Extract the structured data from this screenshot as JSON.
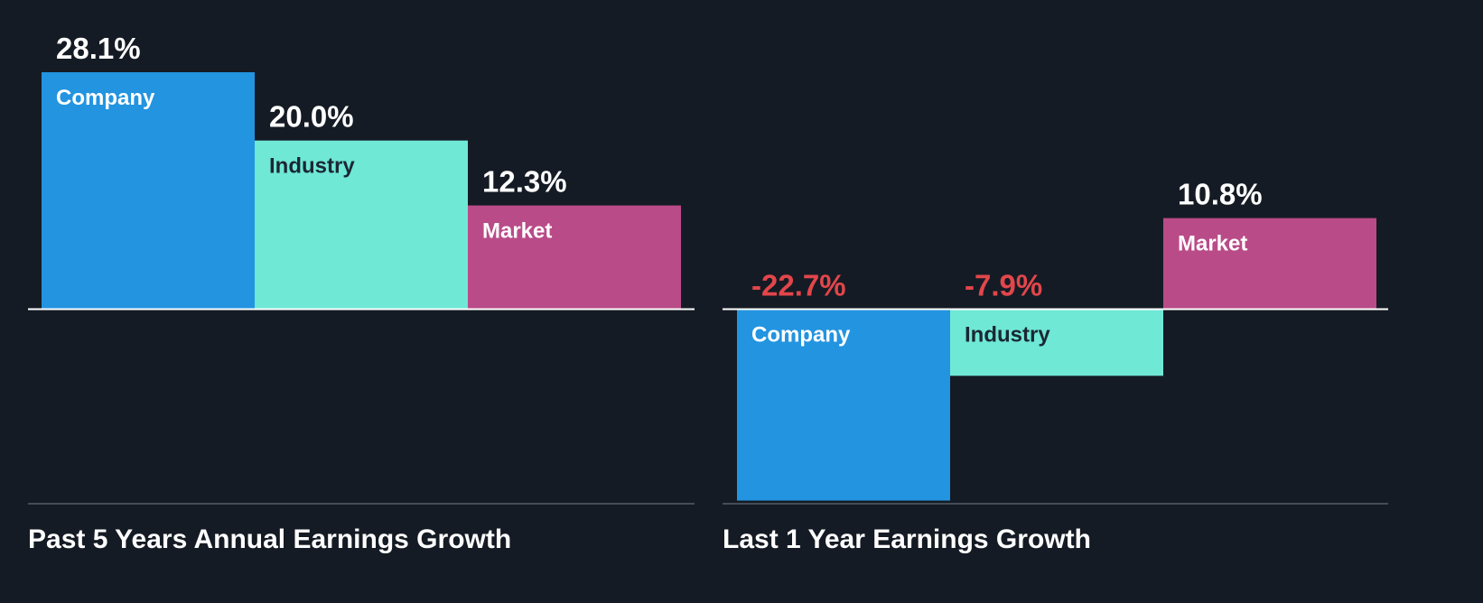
{
  "chart_data": [
    {
      "type": "bar",
      "title": "Past 5 Years Annual Earnings Growth",
      "categories": [
        "Company",
        "Industry",
        "Market"
      ],
      "values": [
        28.1,
        20.0,
        12.3
      ],
      "value_labels": [
        "28.1%",
        "20.0%",
        "12.3%"
      ],
      "unit": "%",
      "ylim": [
        -23.5,
        28.1
      ],
      "colors": [
        "#2394e0",
        "#6fe8d6",
        "#b94b88"
      ],
      "text_colors": [
        "#ffffff",
        "#1b2733",
        "#ffffff"
      ]
    },
    {
      "type": "bar",
      "title": "Last 1 Year Earnings Growth",
      "categories": [
        "Company",
        "Industry",
        "Market"
      ],
      "values": [
        -22.7,
        -7.9,
        10.8
      ],
      "value_labels": [
        "-22.7%",
        "-7.9%",
        "10.8%"
      ],
      "unit": "%",
      "ylim": [
        -23.5,
        28.1
      ],
      "colors": [
        "#2394e0",
        "#6fe8d6",
        "#b94b88"
      ],
      "text_colors": [
        "#ffffff",
        "#1b2733",
        "#ffffff"
      ]
    }
  ],
  "colors": {
    "background": "#151b24",
    "positive_label": "#ffffff",
    "negative_label": "#e2464b",
    "axis_line": "#ffffff",
    "bottom_line": "#444c56"
  }
}
